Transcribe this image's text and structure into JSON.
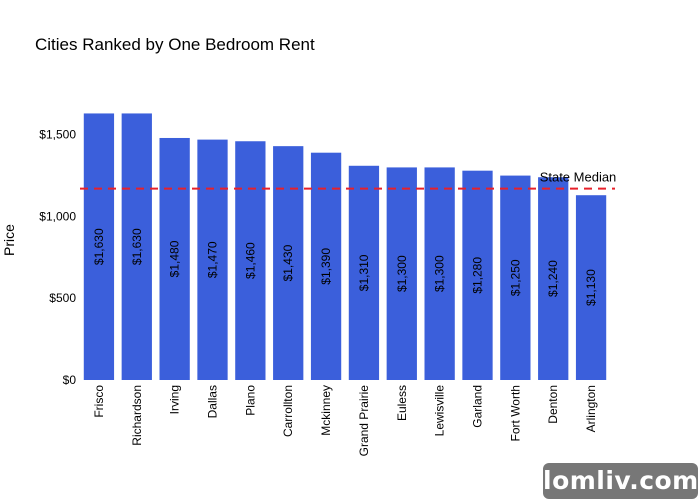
{
  "chart_data": {
    "type": "bar",
    "title": "Cities Ranked by One Bedroom Rent",
    "xlabel": "",
    "ylabel": "Price",
    "categories": [
      "Frisco",
      "Richardson",
      "Irving",
      "Dallas",
      "Plano",
      "Carrollton",
      "Mckinney",
      "Grand Prairie",
      "Euless",
      "Lewisville",
      "Garland",
      "Fort Worth",
      "Denton",
      "Arlington"
    ],
    "values": [
      1630,
      1630,
      1480,
      1470,
      1460,
      1430,
      1390,
      1310,
      1300,
      1300,
      1280,
      1250,
      1240,
      1130
    ],
    "value_labels": [
      "$1,630",
      "$1,630",
      "$1,480",
      "$1,470",
      "$1,460",
      "$1,430",
      "$1,390",
      "$1,310",
      "$1,300",
      "$1,300",
      "$1,280",
      "$1,250",
      "$1,240",
      "$1,130"
    ],
    "ylim": [
      0,
      1700
    ],
    "yticks": [
      0,
      500,
      1000,
      1500
    ],
    "ytick_labels": [
      "$0",
      "$500",
      "$1,000",
      "$1,500"
    ],
    "bar_color": "#3b5fdb",
    "reference_line": {
      "label": "State Median",
      "value": 1170,
      "color": "#e8202a",
      "style": "dashed"
    },
    "grid": false,
    "legend": "none"
  },
  "watermark": {
    "text": "lomliv.com"
  }
}
